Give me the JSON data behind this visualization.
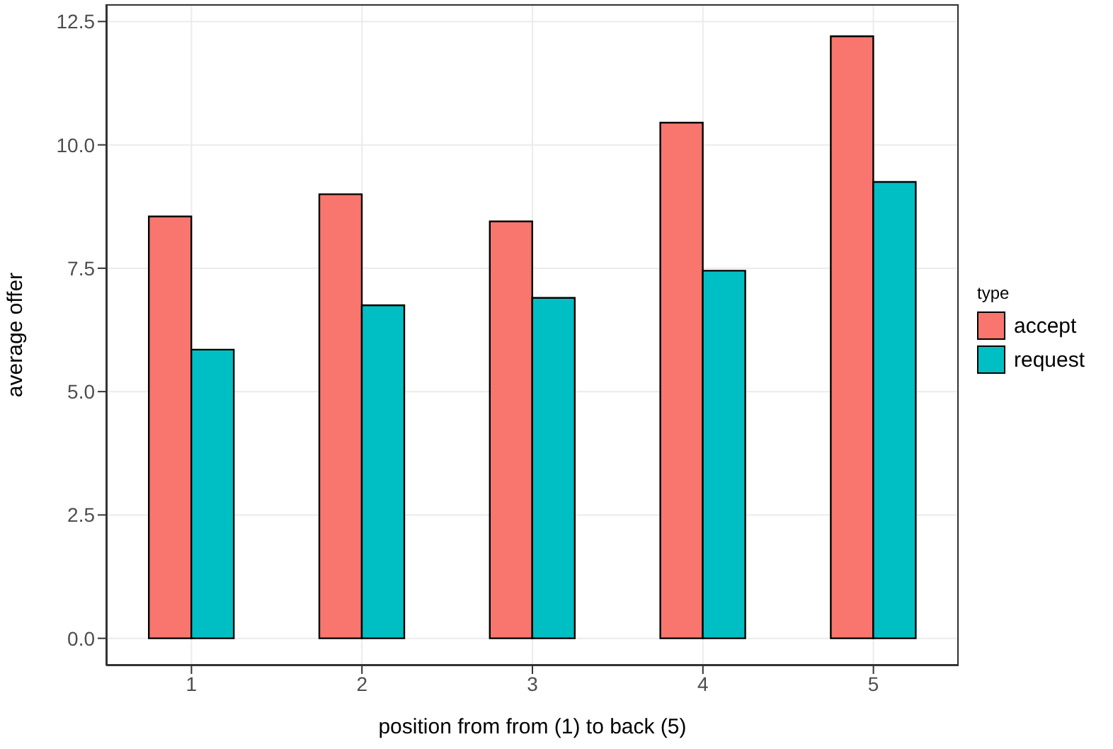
{
  "chart_data": {
    "type": "bar",
    "xlabel": "position from from (1) to back (5)",
    "ylabel": "average offer",
    "legend_title": "type",
    "categories": [
      "1",
      "2",
      "3",
      "4",
      "5"
    ],
    "series": [
      {
        "name": "accept",
        "color": "#f8766d",
        "values": [
          8.55,
          9.0,
          8.45,
          10.45,
          12.2
        ]
      },
      {
        "name": "request",
        "color": "#00bfc4",
        "values": [
          5.85,
          6.75,
          6.9,
          7.45,
          9.25
        ]
      }
    ],
    "ylim": [
      -0.55,
      12.85
    ],
    "yticks": [
      {
        "value": 0,
        "label": "0.0"
      },
      {
        "value": 2.5,
        "label": "2.5"
      },
      {
        "value": 5,
        "label": "5.0"
      },
      {
        "value": 7.5,
        "label": "7.5"
      },
      {
        "value": 10,
        "label": "10.0"
      },
      {
        "value": 12.5,
        "label": "12.5"
      }
    ],
    "grid": true,
    "legend": "right"
  }
}
